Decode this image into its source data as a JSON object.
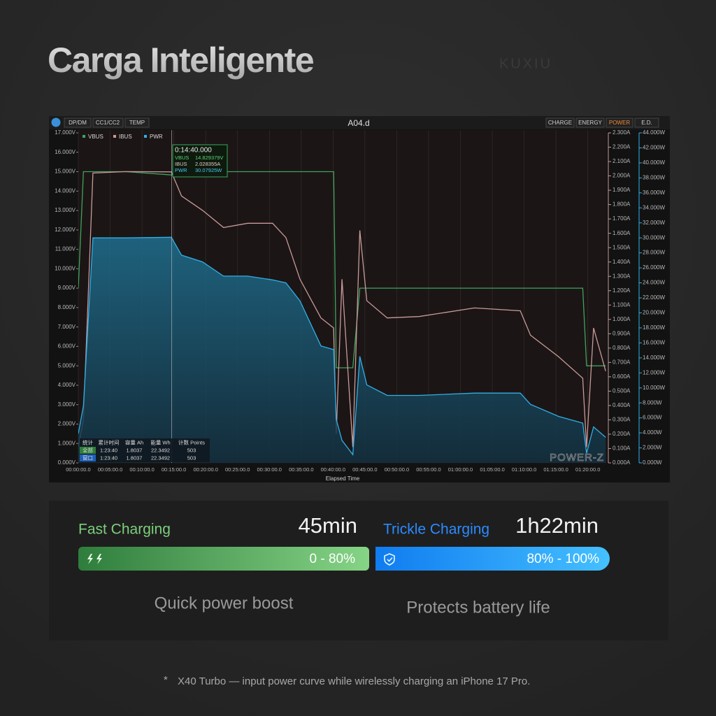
{
  "header": {
    "title": "Carga Inteligente",
    "brand": "KUXIU"
  },
  "toolbar": {
    "left_tabs": [
      "DP/DM",
      "CC1/CC2",
      "TEMP"
    ],
    "file": "A04.d",
    "right_tabs": [
      "CHARGE",
      "ENERGY",
      "POWER",
      "E.D."
    ]
  },
  "chart_data": {
    "type": "line",
    "x_label": "Elapsed Time",
    "watermark": "POWER-Z",
    "x": [
      0,
      0.8,
      2.3,
      7.5,
      14.6,
      16.2,
      19.5,
      22.8,
      26.6,
      30.5,
      32.6,
      34.8,
      38.1,
      40.1,
      40.5,
      41.4,
      43.1,
      44.2,
      45.3,
      48.5,
      53.5,
      62.2,
      69.4,
      71.0,
      75.4,
      79.2,
      79.8,
      80.9,
      82.8
    ],
    "series": [
      {
        "name": "VBUS",
        "color": "#3da55d",
        "axis": "y",
        "values": [
          9.0,
          15.0,
          15.0,
          15.0,
          14.83,
          15.0,
          15.0,
          15.0,
          15.0,
          15.0,
          15.0,
          15.0,
          15.0,
          15.0,
          4.9,
          4.9,
          4.9,
          9.0,
          9.0,
          9.0,
          9.0,
          9.0,
          9.0,
          9.0,
          9.0,
          9.0,
          5.0,
          5.0,
          5.0
        ]
      },
      {
        "name": "IBUS",
        "color": "#c89a9a",
        "axis": "y2",
        "values": [
          0.11,
          0.3,
          2.02,
          2.03,
          2.028,
          1.86,
          1.76,
          1.64,
          1.67,
          1.67,
          1.57,
          1.28,
          1.01,
          0.94,
          0.2,
          1.28,
          0.11,
          1.62,
          1.13,
          1.01,
          1.02,
          1.08,
          1.06,
          0.89,
          0.74,
          0.59,
          0.11,
          0.94,
          0.64
        ]
      },
      {
        "name": "PWR",
        "color": "#2fb0e8",
        "axis": "y3",
        "area": true,
        "values": [
          3.9,
          7.6,
          30.0,
          30.0,
          30.08,
          27.7,
          26.8,
          24.9,
          24.9,
          24.4,
          24.0,
          21.6,
          15.6,
          15.1,
          5.8,
          3.0,
          1.1,
          14.2,
          10.4,
          9.0,
          9.0,
          9.3,
          9.3,
          7.8,
          6.2,
          5.3,
          1.3,
          4.8,
          3.4
        ]
      }
    ],
    "xlim": [
      0,
      83
    ],
    "xticks": [
      {
        "value": 0,
        "label": "00:00:00.0"
      },
      {
        "value": 5,
        "label": "00:05:00.0"
      },
      {
        "value": 10,
        "label": "00:10:00.0"
      },
      {
        "value": 15,
        "label": "00:15:00.0"
      },
      {
        "value": 20,
        "label": "00:20:00.0"
      },
      {
        "value": 25,
        "label": "00:25:00.0"
      },
      {
        "value": 30,
        "label": "00:30:00.0"
      },
      {
        "value": 35,
        "label": "00:35:00.0"
      },
      {
        "value": 40,
        "label": "00:40:00.0"
      },
      {
        "value": 45,
        "label": "00:45:00.0"
      },
      {
        "value": 50,
        "label": "00:50:00.0"
      },
      {
        "value": 55,
        "label": "00:55:00.0"
      },
      {
        "value": 60,
        "label": "01:00:00.0"
      },
      {
        "value": 65,
        "label": "01:05:00.0"
      },
      {
        "value": 70,
        "label": "01:10:00.0"
      },
      {
        "value": 75,
        "label": "01:15:00.0"
      },
      {
        "value": 80,
        "label": "01:20:00.0"
      }
    ],
    "ylim": [
      0,
      17
    ],
    "yticks": [
      {
        "value": 0,
        "label": "0.000V"
      },
      {
        "value": 1,
        "label": "1.000V"
      },
      {
        "value": 2,
        "label": "2.000V"
      },
      {
        "value": 3,
        "label": "3.000V"
      },
      {
        "value": 4,
        "label": "4.000V"
      },
      {
        "value": 5,
        "label": "5.000V"
      },
      {
        "value": 6,
        "label": "6.000V"
      },
      {
        "value": 7,
        "label": "7.000V"
      },
      {
        "value": 8,
        "label": "8.000V"
      },
      {
        "value": 9,
        "label": "9.000V"
      },
      {
        "value": 10,
        "label": "10.000V"
      },
      {
        "value": 11,
        "label": "11.000V"
      },
      {
        "value": 12,
        "label": "12.000V"
      },
      {
        "value": 13,
        "label": "13.000V"
      },
      {
        "value": 14,
        "label": "14.000V"
      },
      {
        "value": 15,
        "label": "15.000V"
      },
      {
        "value": 16,
        "label": "16.000V"
      },
      {
        "value": 17,
        "label": "17.000V"
      }
    ],
    "y2lim": [
      0,
      2.3
    ],
    "y2ticks": [
      {
        "value": 0,
        "label": "0.000A"
      },
      {
        "value": 0.1,
        "label": "0.100A"
      },
      {
        "value": 0.2,
        "label": "0.200A"
      },
      {
        "value": 0.3,
        "label": "0.300A"
      },
      {
        "value": 0.4,
        "label": "0.400A"
      },
      {
        "value": 0.5,
        "label": "0.500A"
      },
      {
        "value": 0.6,
        "label": "0.600A"
      },
      {
        "value": 0.7,
        "label": "0.700A"
      },
      {
        "value": 0.8,
        "label": "0.800A"
      },
      {
        "value": 0.9,
        "label": "0.900A"
      },
      {
        "value": 1.0,
        "label": "1.000A"
      },
      {
        "value": 1.1,
        "label": "1.100A"
      },
      {
        "value": 1.2,
        "label": "1.200A"
      },
      {
        "value": 1.3,
        "label": "1.300A"
      },
      {
        "value": 1.4,
        "label": "1.400A"
      },
      {
        "value": 1.5,
        "label": "1.500A"
      },
      {
        "value": 1.6,
        "label": "1.600A"
      },
      {
        "value": 1.7,
        "label": "1.700A"
      },
      {
        "value": 1.8,
        "label": "1.800A"
      },
      {
        "value": 1.9,
        "label": "1.900A"
      },
      {
        "value": 2.0,
        "label": "2.000A"
      },
      {
        "value": 2.1,
        "label": "2.100A"
      },
      {
        "value": 2.2,
        "label": "2.200A"
      },
      {
        "value": 2.3,
        "label": "2.300A"
      }
    ],
    "y3lim": [
      0,
      44
    ],
    "y3ticks": [
      {
        "value": 0,
        "label": "0.000W"
      },
      {
        "value": 2,
        "label": "2.000W"
      },
      {
        "value": 4,
        "label": "4.000W"
      },
      {
        "value": 6,
        "label": "6.000W"
      },
      {
        "value": 8,
        "label": "8.000W"
      },
      {
        "value": 10,
        "label": "10.000W"
      },
      {
        "value": 12,
        "label": "12.000W"
      },
      {
        "value": 14,
        "label": "14.000W"
      },
      {
        "value": 16,
        "label": "16.000W"
      },
      {
        "value": 18,
        "label": "18.000W"
      },
      {
        "value": 20,
        "label": "20.000W"
      },
      {
        "value": 22,
        "label": "22.000W"
      },
      {
        "value": 24,
        "label": "24.000W"
      },
      {
        "value": 26,
        "label": "26.000W"
      },
      {
        "value": 28,
        "label": "28.000W"
      },
      {
        "value": 30,
        "label": "30.000W"
      },
      {
        "value": 32,
        "label": "32.000W"
      },
      {
        "value": 34,
        "label": "34.000W"
      },
      {
        "value": 36,
        "label": "36.000W"
      },
      {
        "value": 38,
        "label": "38.000W"
      },
      {
        "value": 40,
        "label": "40.000W"
      },
      {
        "value": 42,
        "label": "42.000W"
      },
      {
        "value": 44,
        "label": "44.000W"
      }
    ],
    "grid": true,
    "cursor": {
      "x": 14.67,
      "time": "0:14:40.000",
      "rows": [
        [
          "VBUS",
          "14.829379V"
        ],
        [
          "IBUS",
          "2.028355A"
        ],
        [
          "PWR",
          "30.07925W"
        ]
      ]
    },
    "stats": {
      "header": [
        "统计",
        "累计时间",
        "容量 Ah",
        "能量 Wh",
        "计数 Points"
      ],
      "rows": [
        [
          "全部",
          "1:23:40",
          "1.8037",
          "22.3492",
          "503"
        ],
        [
          "窗口",
          "1:23:40",
          "1.8037",
          "22.3492",
          "503"
        ]
      ]
    }
  },
  "summary": {
    "fast": {
      "label": "Fast Charging",
      "time": "45min",
      "range": "0 - 80%",
      "caption": "Quick power boost"
    },
    "trickle": {
      "label": "Trickle Charging",
      "time": "1h22min",
      "range": "80% - 100%",
      "caption": "Protects battery life"
    }
  },
  "footnote": {
    "mark": "*",
    "text": "X40 Turbo — input power curve while wirelessly charging an iPhone 17 Pro."
  }
}
